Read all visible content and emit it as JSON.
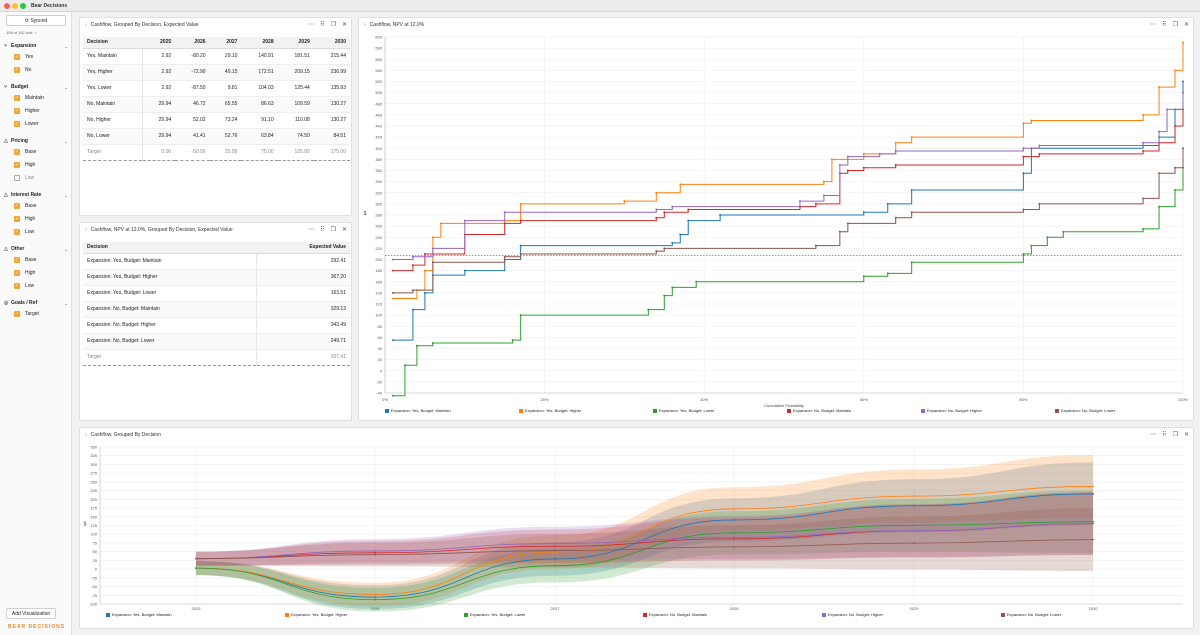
{
  "app": {
    "title": "Bear Decisions",
    "brand": "BEAR DECISIONS"
  },
  "sidebar": {
    "synced_label": "Synced",
    "instances": "108 of 162 Inst.",
    "groups": [
      {
        "label": "Expansion",
        "options": [
          {
            "label": "Yes",
            "checked": true
          },
          {
            "label": "No",
            "checked": true
          }
        ]
      },
      {
        "label": "Budget",
        "options": [
          {
            "label": "Maintain",
            "checked": true
          },
          {
            "label": "Higher",
            "checked": true
          },
          {
            "label": "Lower",
            "checked": true
          }
        ]
      },
      {
        "label": "Pricing",
        "options": [
          {
            "label": "Base",
            "checked": true
          },
          {
            "label": "High",
            "checked": true
          },
          {
            "label": "Low",
            "checked": false
          }
        ]
      },
      {
        "label": "Interest Rate",
        "options": [
          {
            "label": "Base",
            "checked": true
          },
          {
            "label": "High",
            "checked": true
          },
          {
            "label": "Low",
            "checked": true
          }
        ]
      },
      {
        "label": "Other",
        "options": [
          {
            "label": "Base",
            "checked": true
          },
          {
            "label": "High",
            "checked": true
          },
          {
            "label": "Low",
            "checked": true
          }
        ]
      },
      {
        "label": "Goals / Ref",
        "options": [
          {
            "label": "Target",
            "checked": true
          }
        ]
      }
    ],
    "add_viz_label": "Add Visualization"
  },
  "panel1": {
    "title": "Cashflow, Grouped By Decision, Expected Value",
    "columns": [
      "Decision",
      "2025",
      "2026",
      "2027",
      "2028",
      "2029",
      "2030"
    ],
    "rows": [
      [
        "Yes, Maintain",
        "2.92",
        "-80.20",
        "29.10",
        "140.91",
        "181.51",
        "215.44"
      ],
      [
        "Yes, Higher",
        "2.92",
        "-72.90",
        "49.15",
        "172.51",
        "209.15",
        "236.99"
      ],
      [
        "Yes, Lower",
        "2.92",
        "-87.50",
        "9.81",
        "104.03",
        "125.44",
        "135.93"
      ],
      [
        "No, Maintain",
        "29.94",
        "46.72",
        "65.55",
        "86.63",
        "109.59",
        "130.27"
      ],
      [
        "No, Higher",
        "29.94",
        "52.02",
        "73.24",
        "91.10",
        "110.08",
        "130.27"
      ],
      [
        "No, Lower",
        "29.94",
        "41.41",
        "52.76",
        "63.84",
        "74.50",
        "84.51"
      ]
    ],
    "target_row": [
      "Target",
      "0.00",
      "-50.00",
      "25.00",
      "75.00",
      "125.00",
      "175.00"
    ]
  },
  "panel2": {
    "title": "Cashflow, NPV at 12.0%, Grouped By Decision, Expected Value",
    "columns": [
      "Decision",
      "Expected Value"
    ],
    "rows": [
      [
        "Expansion: Yes, Budget: Maintain",
        "292.41"
      ],
      [
        "Expansion: Yes, Budget: Higher",
        "367.20"
      ],
      [
        "Expansion: Yes, Budget: Lower",
        "163.51"
      ],
      [
        "Expansion: No, Budget: Maintain",
        "329.13"
      ],
      [
        "Expansion: No, Budget: Higher",
        "343.49"
      ],
      [
        "Expansion: No, Budget: Lower",
        "249.71"
      ]
    ],
    "target_row": [
      "Target",
      "207.41"
    ]
  },
  "panel3": {
    "title": "Cashflow, NPV at 12.0%"
  },
  "panel4": {
    "title": "Cashflow, Grouped By Decision"
  },
  "chart_data": [
    {
      "type": "line",
      "title": "Cashflow, NPV at 12.0%",
      "xlabel": "Cumulative Probability",
      "ylabel": "$",
      "xlim": [
        0,
        100
      ],
      "ylim": [
        -40,
        600
      ],
      "x_ticks": [
        "0%",
        "20%",
        "40%",
        "60%",
        "80%",
        "100%"
      ],
      "y_ticks": [
        -40,
        -20,
        0,
        20,
        40,
        60,
        80,
        100,
        120,
        140,
        160,
        180,
        200,
        220,
        240,
        260,
        280,
        300,
        320,
        340,
        360,
        380,
        400,
        420,
        440,
        460,
        480,
        500,
        520,
        540,
        560,
        580,
        600
      ],
      "reference_line": 207.41,
      "series": [
        {
          "name": "Expansion: Yes, Budget: Maintain",
          "color": "#1f77b4",
          "x": [
            1,
            3.5,
            5,
            6,
            10,
            15,
            17,
            36,
            37,
            38,
            42,
            60,
            63,
            66,
            80,
            81,
            95,
            97,
            99,
            100
          ],
          "y": [
            55,
            110,
            140,
            172,
            180,
            200,
            225,
            230,
            245,
            270,
            280,
            285,
            300,
            325,
            355,
            400,
            405,
            420,
            470,
            520
          ]
        },
        {
          "name": "Expansion: Yes, Budget: Higher",
          "color": "#ff7f0e",
          "x": [
            1,
            4,
            5,
            6,
            7,
            15,
            17,
            30,
            34,
            37,
            55,
            56,
            60,
            64,
            66,
            80,
            81,
            95,
            97,
            99,
            100
          ],
          "y": [
            130,
            145,
            180,
            240,
            265,
            270,
            300,
            305,
            320,
            335,
            340,
            380,
            390,
            410,
            420,
            445,
            450,
            460,
            510,
            540,
            590
          ]
        },
        {
          "name": "Expansion: Yes, Budget: Lower",
          "color": "#2ca02c",
          "x": [
            1,
            2.5,
            4,
            6,
            16,
            17,
            33,
            35,
            36,
            39,
            60,
            63,
            66,
            80,
            81,
            83,
            85,
            95,
            97,
            99,
            100
          ],
          "y": [
            -45,
            10,
            45,
            50,
            55,
            100,
            110,
            135,
            150,
            160,
            170,
            175,
            195,
            210,
            225,
            240,
            250,
            255,
            295,
            325,
            365
          ]
        },
        {
          "name": "Expansion: No, Budget: Maintain",
          "color": "#d62728",
          "x": [
            1,
            3.5,
            5,
            10,
            15,
            17,
            34,
            35,
            38,
            52,
            54,
            57,
            58,
            60,
            64,
            80,
            82,
            95,
            97,
            99,
            100
          ],
          "y": [
            180,
            190,
            210,
            245,
            265,
            270,
            275,
            285,
            290,
            295,
            300,
            355,
            360,
            365,
            370,
            385,
            390,
            395,
            410,
            440,
            470
          ]
        },
        {
          "name": "Expansion: No, Budget: Higher",
          "color": "#9467bd",
          "x": [
            1,
            3.5,
            6,
            10,
            15,
            34,
            36,
            52,
            55,
            57,
            58,
            62,
            64,
            80,
            82,
            95,
            97,
            98,
            100
          ],
          "y": [
            200,
            205,
            220,
            270,
            285,
            290,
            295,
            305,
            315,
            370,
            385,
            390,
            395,
            400,
            405,
            410,
            430,
            470,
            500
          ]
        },
        {
          "name": "Expansion: No, Budget: Lower",
          "color": "#8c564b",
          "x": [
            1,
            3.5,
            6,
            15,
            17,
            34,
            35,
            54,
            57,
            58,
            64,
            66,
            80,
            82,
            95,
            97,
            99,
            100
          ],
          "y": [
            140,
            145,
            195,
            205,
            210,
            215,
            220,
            225,
            250,
            265,
            275,
            285,
            290,
            300,
            310,
            355,
            365,
            400
          ]
        }
      ]
    },
    {
      "type": "area",
      "title": "Cashflow, Grouped By Decision",
      "ylabel": "$",
      "x": [
        2025,
        2026,
        2027,
        2028,
        2029,
        2030
      ],
      "xlim": [
        2025,
        2030
      ],
      "ylim": [
        -100,
        350
      ],
      "y_ticks": [
        -100,
        -75,
        -50,
        -25,
        0,
        25,
        50,
        75,
        100,
        125,
        150,
        175,
        200,
        225,
        250,
        275,
        300,
        325,
        350
      ],
      "series": [
        {
          "name": "Expansion: Yes, Budget: Maintain",
          "color": "#1f77b4",
          "values": [
            2.92,
            -80.2,
            29.1,
            140.91,
            181.51,
            215.44
          ]
        },
        {
          "name": "Expansion: Yes, Budget: Higher",
          "color": "#ff7f0e",
          "values": [
            2.92,
            -72.9,
            49.15,
            172.51,
            209.15,
            236.99
          ]
        },
        {
          "name": "Expansion: Yes, Budget: Lower",
          "color": "#2ca02c",
          "values": [
            2.92,
            -87.5,
            9.81,
            104.03,
            125.44,
            135.93
          ]
        },
        {
          "name": "Expansion: No, Budget: Maintain",
          "color": "#d62728",
          "values": [
            29.94,
            46.72,
            65.55,
            86.63,
            109.59,
            130.27
          ]
        },
        {
          "name": "Expansion: No, Budget: Higher",
          "color": "#9467bd",
          "values": [
            29.94,
            52.02,
            73.24,
            91.1,
            110.08,
            130.27
          ]
        },
        {
          "name": "Expansion: No, Budget: Lower",
          "color": "#8c564b",
          "values": [
            29.94,
            41.41,
            52.76,
            63.84,
            74.5,
            84.51
          ]
        }
      ]
    }
  ]
}
